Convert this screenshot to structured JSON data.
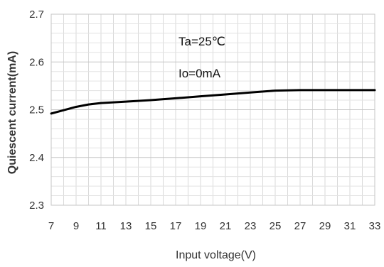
{
  "chart_data": {
    "type": "line",
    "title": "",
    "xlabel": "Input voltage(V)",
    "ylabel": "Quiescent current(mA)",
    "xlim": [
      7,
      33
    ],
    "ylim": [
      2.3,
      2.7
    ],
    "x_ticks": [
      "7",
      "9",
      "11",
      "13",
      "15",
      "17",
      "19",
      "21",
      "23",
      "25",
      "27",
      "29",
      "31",
      "33"
    ],
    "y_ticks": [
      "2.3",
      "2.4",
      "2.5",
      "2.6",
      "2.7"
    ],
    "grid": true,
    "legend": "none",
    "annotations": [
      "Ta=25℃",
      "Io=0mA"
    ],
    "series": [
      {
        "color": "#000000",
        "x": [
          7,
          8,
          9,
          10,
          11,
          13,
          15,
          17,
          19,
          21,
          23,
          25,
          27,
          29,
          31,
          33
        ],
        "y": [
          2.492,
          2.499,
          2.506,
          2.511,
          2.514,
          2.517,
          2.52,
          2.524,
          2.528,
          2.532,
          2.536,
          2.54,
          2.541,
          2.541,
          2.541,
          2.541
        ]
      }
    ]
  }
}
